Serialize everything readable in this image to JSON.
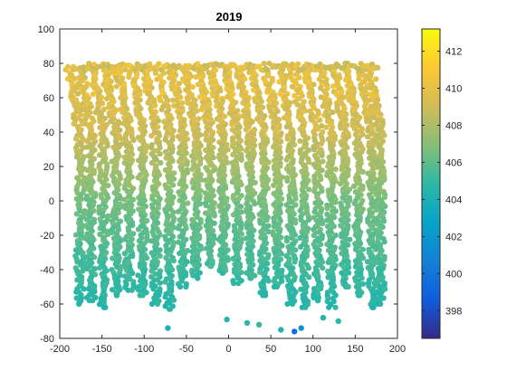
{
  "chart_data": {
    "type": "scatter",
    "title": "2019",
    "xlabel": "",
    "ylabel": "",
    "xlim": [
      -200,
      200
    ],
    "ylim": [
      -80,
      100
    ],
    "x_ticks": [
      "-200",
      "-150",
      "-100",
      "-50",
      "0",
      "50",
      "100",
      "150",
      "200"
    ],
    "y_ticks": [
      "-80",
      "-60",
      "-40",
      "-20",
      "0",
      "20",
      "40",
      "60",
      "80",
      "100"
    ],
    "grid": false,
    "colorbar": {
      "colormap": "parula",
      "range": [
        396.5,
        413.2
      ],
      "ticks": [
        "398",
        "400",
        "402",
        "404",
        "406",
        "408",
        "410",
        "412"
      ],
      "stops": [
        "#352a87",
        "#0f5cdd",
        "#1481d6",
        "#06a4ca",
        "#2eb7a4",
        "#87bf77",
        "#d1bb59",
        "#fec832",
        "#f9fb0e"
      ]
    },
    "description_values": {
      "swaths": [
        {
          "x": -178,
          "ytop": 78,
          "ybot": -60
        },
        {
          "x": -165,
          "ytop": 75,
          "ybot": -58
        },
        {
          "x": -150,
          "ytop": 78,
          "ybot": -62
        },
        {
          "x": -135,
          "ytop": 76,
          "ybot": -55
        },
        {
          "x": -120,
          "ytop": 78,
          "ybot": -52
        },
        {
          "x": -104,
          "ytop": 77,
          "ybot": -55
        },
        {
          "x": -88,
          "ytop": 78,
          "ybot": -60
        },
        {
          "x": -72,
          "ytop": 76,
          "ybot": -63
        },
        {
          "x": -56,
          "ytop": 78,
          "ybot": -50
        },
        {
          "x": -40,
          "ytop": 77,
          "ybot": -45
        },
        {
          "x": -24,
          "ytop": 78,
          "ybot": -38
        },
        {
          "x": -8,
          "ytop": 76,
          "ybot": -42
        },
        {
          "x": 8,
          "ytop": 78,
          "ybot": -48
        },
        {
          "x": 24,
          "ytop": 77,
          "ybot": -45
        },
        {
          "x": 40,
          "ytop": 78,
          "ybot": -55
        },
        {
          "x": 56,
          "ytop": 76,
          "ybot": -50
        },
        {
          "x": 72,
          "ytop": 78,
          "ybot": -60
        },
        {
          "x": 88,
          "ytop": 77,
          "ybot": -62
        },
        {
          "x": 104,
          "ytop": 78,
          "ybot": -58
        },
        {
          "x": 120,
          "ytop": 76,
          "ybot": -62
        },
        {
          "x": 136,
          "ytop": 78,
          "ybot": -50
        },
        {
          "x": 152,
          "ytop": 77,
          "ybot": -55
        },
        {
          "x": 168,
          "ytop": 78,
          "ybot": -62
        },
        {
          "x": 178,
          "ytop": 76,
          "ybot": -60
        }
      ],
      "outliers": [
        {
          "x": 78,
          "y": -76,
          "v": 399.5
        },
        {
          "x": 86,
          "y": -74,
          "v": 402.0
        },
        {
          "x": -72,
          "y": -74,
          "v": 404.0
        },
        {
          "x": 62,
          "y": -75,
          "v": 404.3
        },
        {
          "x": -2,
          "y": -69,
          "v": 404.6
        },
        {
          "x": 22,
          "y": -71,
          "v": 404.8
        },
        {
          "x": 36,
          "y": -72,
          "v": 405.0
        },
        {
          "x": 112,
          "y": -68,
          "v": 404.5
        },
        {
          "x": 130,
          "y": -70,
          "v": 404.7
        }
      ]
    }
  }
}
